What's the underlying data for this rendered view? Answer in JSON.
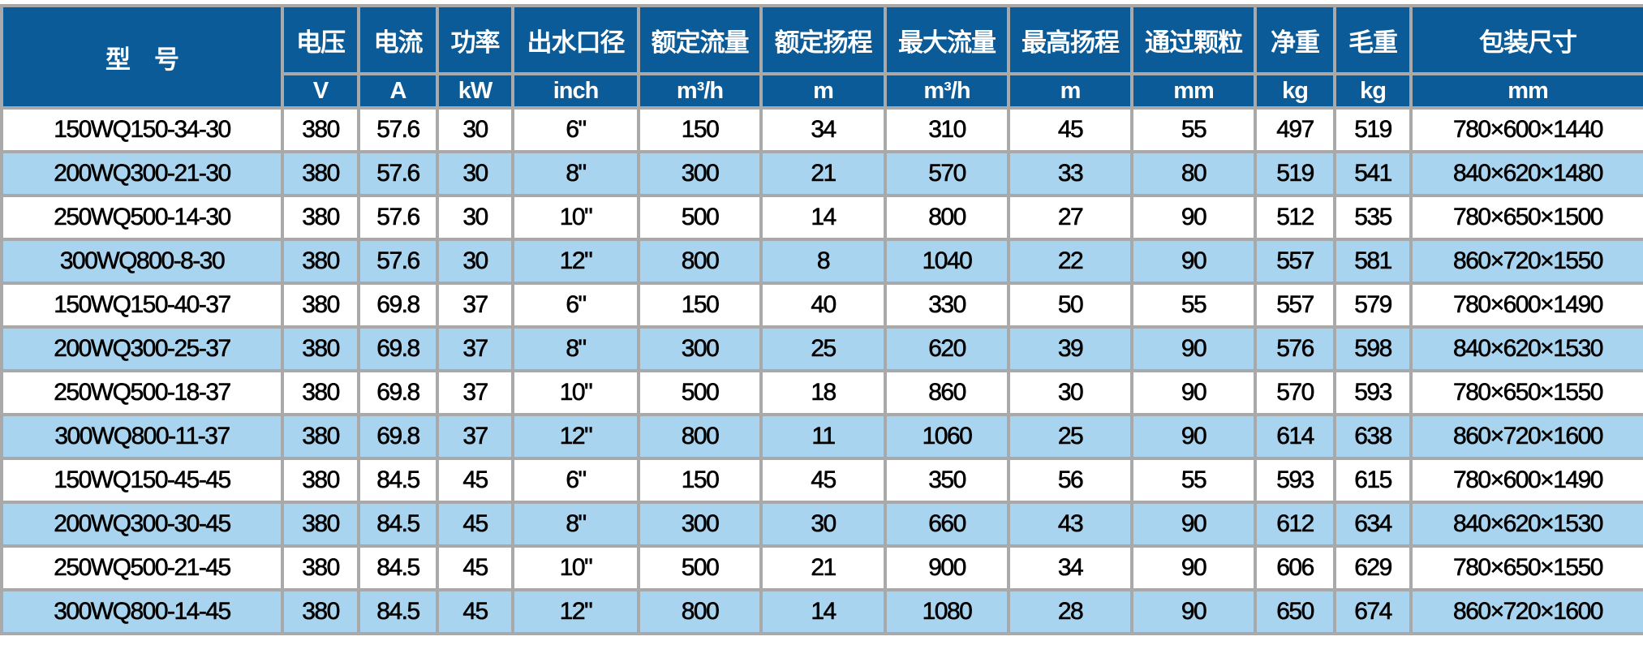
{
  "colors": {
    "header_bg": "#0a5b97",
    "header_text": "#ffffff",
    "alt_row_bg": "#a8d4ef",
    "row_bg": "#ffffff",
    "border": "#a9a9a9"
  },
  "header": {
    "model": "型　号",
    "columns": [
      "电压",
      "电流",
      "功率",
      "出水口径",
      "额定流量",
      "额定扬程",
      "最大流量",
      "最高扬程",
      "通过颗粒",
      "净重",
      "毛重",
      "包装尺寸"
    ],
    "units": [
      "V",
      "A",
      "kW",
      "inch",
      "m³/h",
      "m",
      "m³/h",
      "m",
      "mm",
      "kg",
      "kg",
      "mm"
    ]
  },
  "rows": [
    [
      "150WQ150-34-30",
      "380",
      "57.6",
      "30",
      "6\"",
      "150",
      "34",
      "310",
      "45",
      "55",
      "497",
      "519",
      "780×600×1440"
    ],
    [
      "200WQ300-21-30",
      "380",
      "57.6",
      "30",
      "8\"",
      "300",
      "21",
      "570",
      "33",
      "80",
      "519",
      "541",
      "840×620×1480"
    ],
    [
      "250WQ500-14-30",
      "380",
      "57.6",
      "30",
      "10\"",
      "500",
      "14",
      "800",
      "27",
      "90",
      "512",
      "535",
      "780×650×1500"
    ],
    [
      "300WQ800-8-30",
      "380",
      "57.6",
      "30",
      "12\"",
      "800",
      "8",
      "1040",
      "22",
      "90",
      "557",
      "581",
      "860×720×1550"
    ],
    [
      "150WQ150-40-37",
      "380",
      "69.8",
      "37",
      "6\"",
      "150",
      "40",
      "330",
      "50",
      "55",
      "557",
      "579",
      "780×600×1490"
    ],
    [
      "200WQ300-25-37",
      "380",
      "69.8",
      "37",
      "8\"",
      "300",
      "25",
      "620",
      "39",
      "90",
      "576",
      "598",
      "840×620×1530"
    ],
    [
      "250WQ500-18-37",
      "380",
      "69.8",
      "37",
      "10\"",
      "500",
      "18",
      "860",
      "30",
      "90",
      "570",
      "593",
      "780×650×1550"
    ],
    [
      "300WQ800-11-37",
      "380",
      "69.8",
      "37",
      "12\"",
      "800",
      "11",
      "1060",
      "25",
      "90",
      "614",
      "638",
      "860×720×1600"
    ],
    [
      "150WQ150-45-45",
      "380",
      "84.5",
      "45",
      "6\"",
      "150",
      "45",
      "350",
      "56",
      "55",
      "593",
      "615",
      "780×600×1490"
    ],
    [
      "200WQ300-30-45",
      "380",
      "84.5",
      "45",
      "8\"",
      "300",
      "30",
      "660",
      "43",
      "90",
      "612",
      "634",
      "840×620×1530"
    ],
    [
      "250WQ500-21-45",
      "380",
      "84.5",
      "45",
      "10\"",
      "500",
      "21",
      "900",
      "34",
      "90",
      "606",
      "629",
      "780×650×1550"
    ],
    [
      "300WQ800-14-45",
      "380",
      "84.5",
      "45",
      "12\"",
      "800",
      "14",
      "1080",
      "28",
      "90",
      "650",
      "674",
      "860×720×1600"
    ]
  ]
}
